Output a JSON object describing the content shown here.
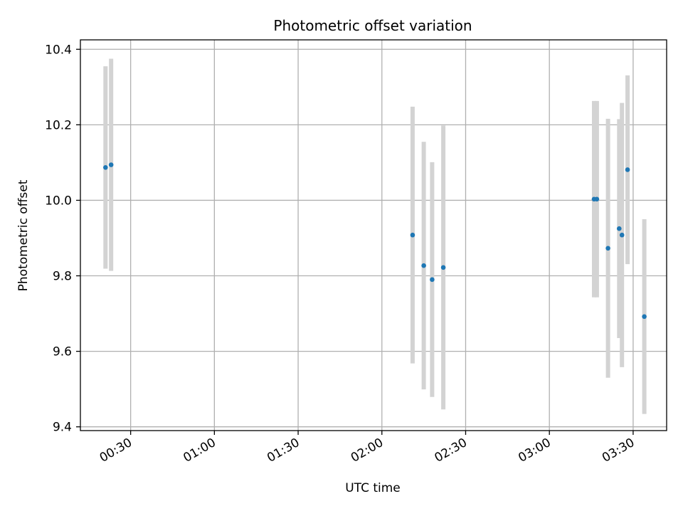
{
  "chart_data": {
    "type": "scatter",
    "title": "Photometric offset variation",
    "xlabel": "UTC time",
    "ylabel": "Photometric offset",
    "x_unit": "UTC time (HH:MM)",
    "xlim": [
      "00:12",
      "03:42"
    ],
    "ylim": [
      9.39,
      10.425
    ],
    "x_ticks": [
      "00:30",
      "01:00",
      "01:30",
      "02:00",
      "02:30",
      "03:00",
      "03:30"
    ],
    "y_ticks": [
      9.4,
      9.6,
      9.8,
      10.0,
      10.2,
      10.4
    ],
    "grid": true,
    "points_color": "#1f77b4",
    "errorbar_color": "#d3d3d3",
    "points": [
      {
        "x": "00:21",
        "y": 10.087,
        "yerr": 0.268
      },
      {
        "x": "00:23",
        "y": 10.094,
        "yerr": 0.281
      },
      {
        "x": "02:11",
        "y": 9.908,
        "yerr": 0.34
      },
      {
        "x": "02:15",
        "y": 9.827,
        "yerr": 0.328
      },
      {
        "x": "02:18",
        "y": 9.79,
        "yerr": 0.311
      },
      {
        "x": "02:22",
        "y": 9.822,
        "yerr": 0.376
      },
      {
        "x": "03:16",
        "y": 10.003,
        "yerr": 0.26
      },
      {
        "x": "03:17",
        "y": 10.003,
        "yerr": 0.26
      },
      {
        "x": "03:21",
        "y": 9.873,
        "yerr": 0.343
      },
      {
        "x": "03:25",
        "y": 9.925,
        "yerr": 0.29
      },
      {
        "x": "03:26",
        "y": 9.908,
        "yerr": 0.35
      },
      {
        "x": "03:28",
        "y": 10.081,
        "yerr": 0.25
      },
      {
        "x": "03:34",
        "y": 9.692,
        "yerr": 0.258
      }
    ]
  }
}
